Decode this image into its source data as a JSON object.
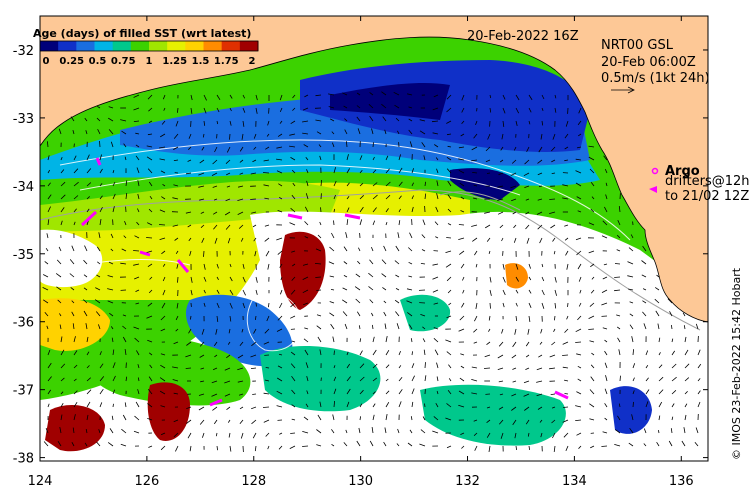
{
  "map": {
    "date_label": "20-Feb-2022 16Z",
    "credit": "© IMOS 23-Feb-2022 15:42 Hobart",
    "lon_ticks": [
      "124",
      "126",
      "128",
      "130",
      "132",
      "134",
      "136"
    ],
    "lat_ticks": [
      "-32",
      "-33",
      "-34",
      "-35",
      "-36",
      "-37",
      "-38"
    ],
    "lon_range": [
      124,
      136.5
    ],
    "lat_range": [
      -31.5,
      -38.05
    ]
  },
  "colorbar": {
    "title": "Age (days) of filled SST (wrt latest)",
    "ticks": [
      "0",
      "0.25",
      "0.5",
      "0.75",
      "1",
      "1.25",
      "1.5",
      "1.75",
      "2"
    ],
    "colors": [
      "#00007a",
      "#1030c8",
      "#1a6ee0",
      "#00b4e6",
      "#00c88c",
      "#3cd200",
      "#a0e600",
      "#e6f000",
      "#ffd200",
      "#ff8c00",
      "#e03000",
      "#a00000"
    ]
  },
  "currents": {
    "title": "NRT00 GSL",
    "time": "20-Feb 06:00Z",
    "scale": "0.5m/s (1kt 24h)"
  },
  "legend": {
    "argo": "Argo",
    "drifters_line1": "drifters@12h",
    "drifters_line2": "to 21/02 12Z"
  },
  "colors": {
    "land": "#fdc896",
    "no_data": "#ffffff",
    "marker": "#ff00ff"
  }
}
